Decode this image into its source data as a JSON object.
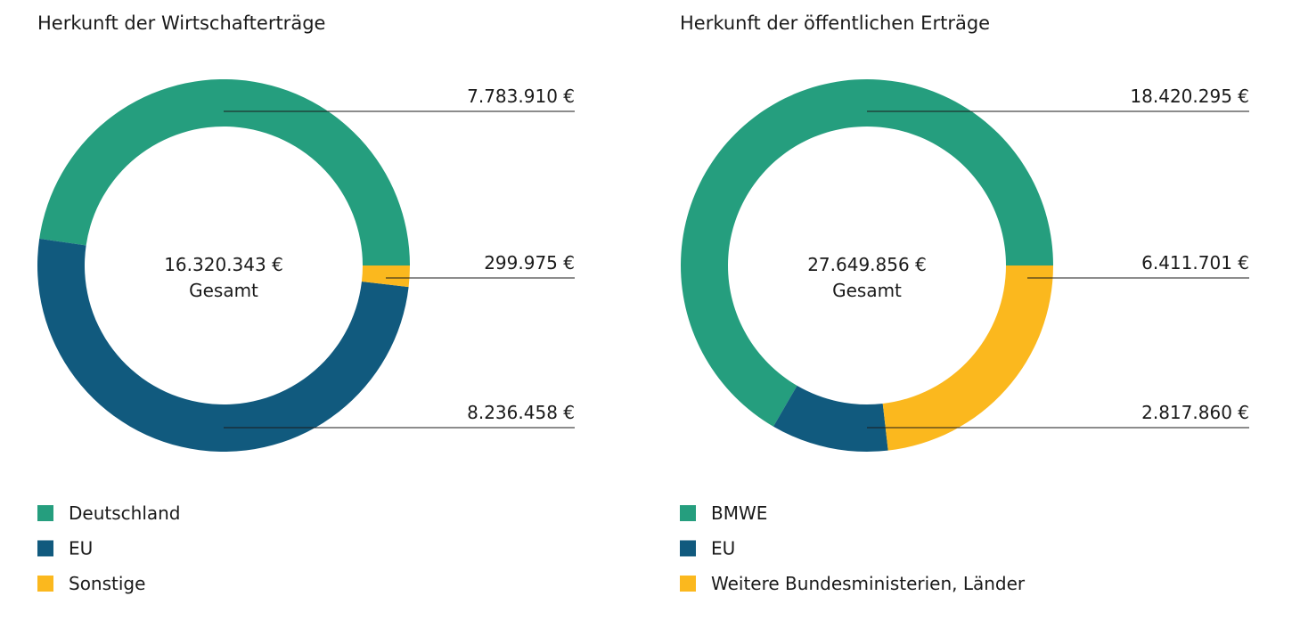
{
  "chart_data": [
    {
      "type": "pie",
      "donut": true,
      "title": "Herkunft der Wirtschafterträge",
      "total_label": "16.320.343 €",
      "total_caption": "Gesamt",
      "categories": [
        "Deutschland",
        "EU",
        "Sonstige"
      ],
      "values": [
        7783910,
        8236458,
        299975
      ],
      "value_labels": [
        "7.783.910 €",
        "8.236.458 €",
        "299.975 €"
      ],
      "colors": [
        "#259e7e",
        "#115a7e",
        "#fbb81e"
      ],
      "legend_position": "bottom-left"
    },
    {
      "type": "pie",
      "donut": true,
      "title": "Herkunft der öffentlichen Erträge",
      "total_label": "27.649.856 €",
      "total_caption": "Gesamt",
      "categories": [
        "BMWE",
        "EU",
        "Weitere Bundesministerien, Länder"
      ],
      "values": [
        18420295,
        2817860,
        6411701
      ],
      "value_labels": [
        "18.420.295 €",
        "2.817.860 €",
        "6.411.701 €"
      ],
      "colors": [
        "#259e7e",
        "#115a7e",
        "#fbb81e"
      ],
      "legend_position": "bottom-left"
    }
  ]
}
